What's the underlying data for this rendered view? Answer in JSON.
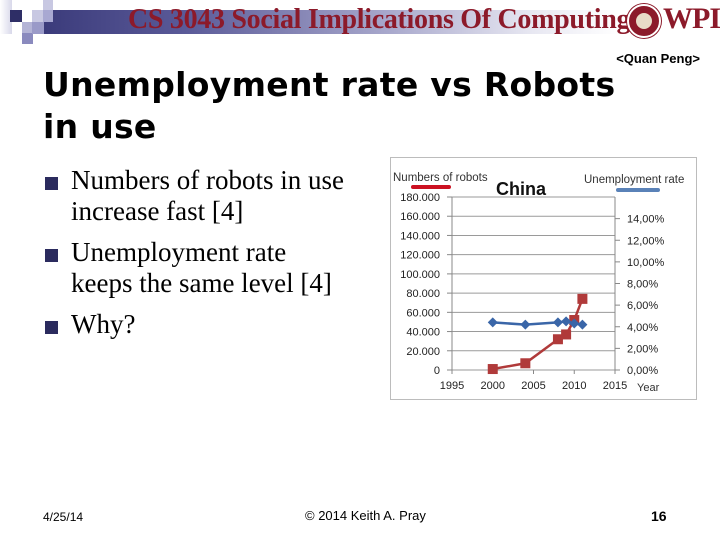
{
  "header": {
    "course_title": "CS 3043 Social Implications Of Computing",
    "logo_text": "WPI",
    "title_color": "#8c1a2a",
    "band_color": "#3a3a7a"
  },
  "slide": {
    "author": "<Quan Peng>",
    "title_line1": "Unemployment rate vs Robots",
    "title_line2": "in use",
    "bullets": [
      {
        "line1": "Numbers of robots in use",
        "line2": "increase fast [4]"
      },
      {
        "line1": "Unemployment rate",
        "line2": "keeps the same level [4]"
      },
      {
        "line1": "Why?",
        "line2": ""
      }
    ]
  },
  "footer": {
    "date": "4/25/14",
    "copyright": "© 2014 Keith A. Pray",
    "page_number": "16"
  },
  "chart_data": {
    "type": "line",
    "title": "China",
    "xlabel": "Year",
    "x_ticks": [
      "1995",
      "2000",
      "2005",
      "2010",
      "2015"
    ],
    "xlim": [
      1995,
      2015
    ],
    "left_axis": {
      "label": "Numbers of robots",
      "ticks": [
        "0",
        "20.000",
        "40.000",
        "60.000",
        "80.000",
        "100.000",
        "120.000",
        "140.000",
        "160.000",
        "180.000"
      ],
      "ylim": [
        0,
        180000
      ]
    },
    "right_axis": {
      "label": "Unemployment rate",
      "ticks": [
        "0,00%",
        "2,00%",
        "4,00%",
        "6,00%",
        "8,00%",
        "10,00%",
        "12,00%",
        "14,00%"
      ],
      "ylim": [
        0,
        16
      ]
    },
    "grid": true,
    "series": [
      {
        "name": "Numbers of robots",
        "axis": "left",
        "color": "#b03a3a",
        "marker": "square",
        "x": [
          2000,
          2004,
          2008,
          2009,
          2010,
          2011
        ],
        "values": [
          1000,
          7000,
          32000,
          37000,
          52000,
          74000
        ]
      },
      {
        "name": "Unemployment rate",
        "axis": "right",
        "color": "#3a66a8",
        "marker": "diamond",
        "x": [
          2000,
          2004,
          2008,
          2009,
          2010,
          2011
        ],
        "values": [
          4.4,
          4.2,
          4.4,
          4.5,
          4.3,
          4.2
        ]
      }
    ],
    "legend": {
      "left_label": "Numbers of robots",
      "left_color": "#cc1122",
      "right_label": "Unemployment rate",
      "right_color": "#5a82b8"
    }
  }
}
